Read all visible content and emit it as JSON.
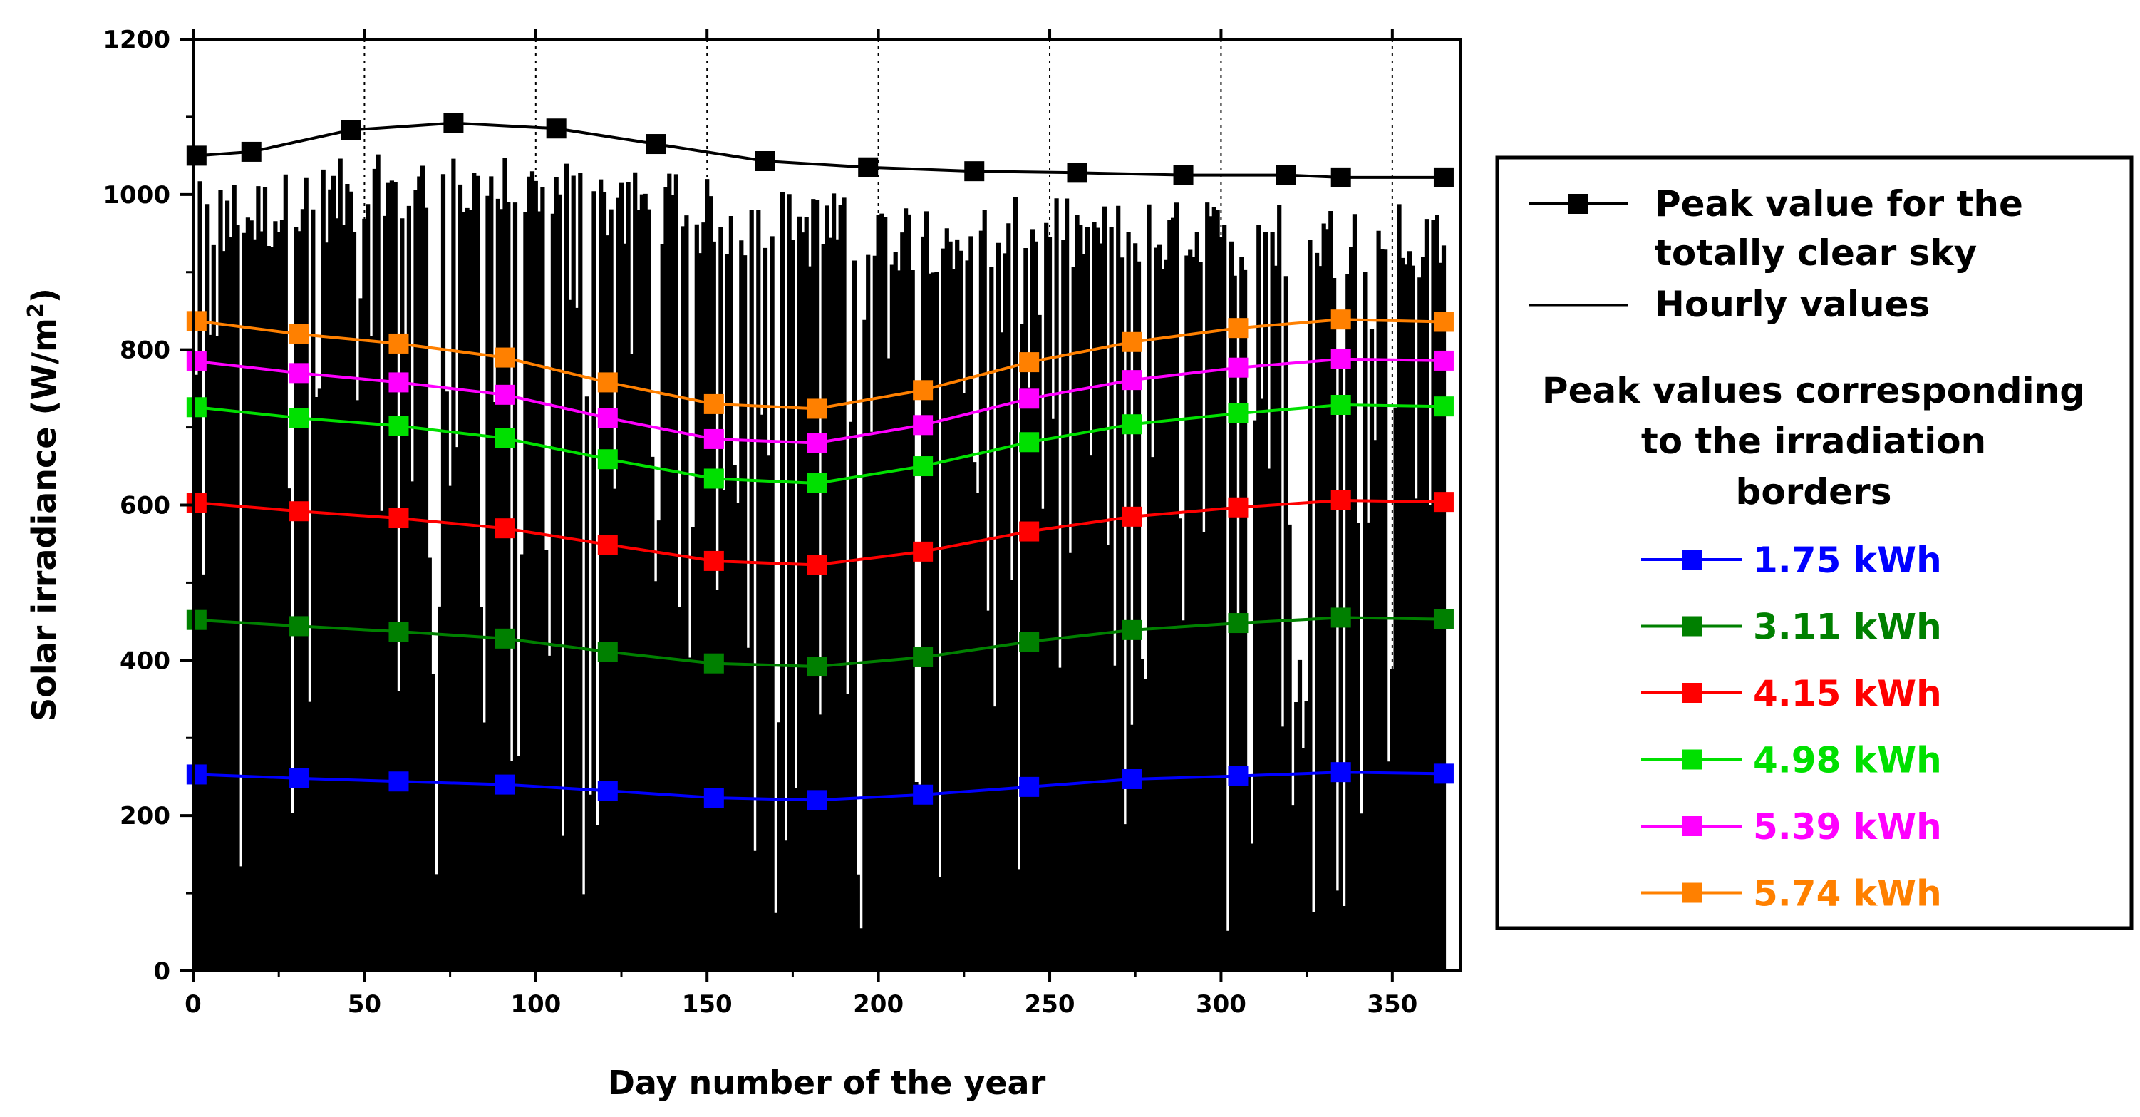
{
  "chart_data": {
    "type": "line",
    "xlabel": "Day number of the year",
    "ylabel_main": "Solar irradiance (W/m",
    "ylabel_sup": "2",
    "ylabel_close": ")",
    "xlim": [
      0,
      370
    ],
    "ylim": [
      0,
      1200
    ],
    "x_ticks": [
      0,
      50,
      100,
      150,
      200,
      250,
      300,
      350
    ],
    "y_ticks": [
      0,
      200,
      400,
      600,
      800,
      1000,
      1200
    ],
    "vertical_dotted_lines": [
      50,
      100,
      150,
      200,
      250,
      300,
      350
    ],
    "legend": {
      "placement": "right, outside plot",
      "header_lines": [
        "Peak values corresponding",
        "to the irradiation",
        "borders"
      ],
      "clear_sky_lines": [
        "Peak value for the",
        "totally clear sky"
      ],
      "hourly_label": "Hourly values"
    },
    "clear_sky": {
      "name": "Peak value for the totally clear sky",
      "color": "#000000",
      "x": [
        1,
        17,
        46,
        76,
        106,
        135,
        167,
        197,
        228,
        258,
        289,
        319,
        335,
        365
      ],
      "y": [
        1050,
        1055,
        1083,
        1092,
        1085,
        1065,
        1043,
        1035,
        1030,
        1028,
        1025,
        1025,
        1022,
        1022
      ]
    },
    "hourly": {
      "name": "Hourly values",
      "color": "#000000"
    },
    "x": [
      1,
      31,
      60,
      91,
      121,
      152,
      182,
      213,
      244,
      274,
      305,
      335,
      365
    ],
    "series": [
      {
        "name": "1.75 kWh",
        "color": "#0000ff",
        "values": [
          253,
          248,
          244,
          240,
          232,
          223,
          220,
          227,
          237,
          247,
          251,
          256,
          254
        ]
      },
      {
        "name": "3.11 kWh",
        "color": "#008000",
        "values": [
          452,
          444,
          437,
          428,
          411,
          396,
          392,
          404,
          424,
          439,
          448,
          455,
          453
        ]
      },
      {
        "name": "4.15 kWh",
        "color": "#ff0000",
        "values": [
          603,
          592,
          583,
          570,
          549,
          528,
          523,
          540,
          566,
          585,
          597,
          606,
          604
        ]
      },
      {
        "name": "4.98 kWh",
        "color": "#00e000",
        "values": [
          726,
          712,
          702,
          686,
          659,
          634,
          628,
          650,
          681,
          704,
          718,
          729,
          727
        ]
      },
      {
        "name": "5.39 kWh",
        "color": "#ff00ff",
        "values": [
          785,
          770,
          758,
          742,
          712,
          685,
          680,
          703,
          737,
          761,
          777,
          788,
          786
        ]
      },
      {
        "name": "5.74 kWh",
        "color": "#ff8000",
        "values": [
          837,
          820,
          808,
          790,
          758,
          730,
          724,
          748,
          784,
          810,
          828,
          839,
          836
        ]
      }
    ]
  }
}
